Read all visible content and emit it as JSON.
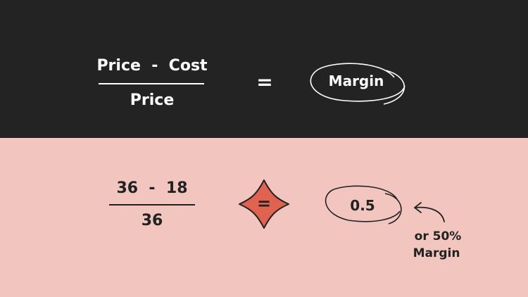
{
  "formula": {
    "numerator": "Price  -  Cost",
    "denominator": "Price",
    "equals": "=",
    "result": "Margin"
  },
  "example": {
    "numerator": "36  -  18",
    "denominator": "36",
    "equals": "=",
    "result": "0.5",
    "note_line1": "or 50%",
    "note_line2": "Margin"
  },
  "colors": {
    "top_background": "#232323",
    "bottom_background": "#f2c6bf",
    "accent": "#e06250"
  }
}
